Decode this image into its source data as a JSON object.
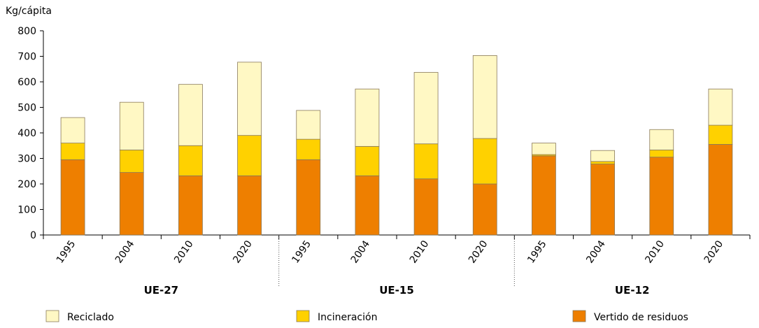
{
  "chart_data": {
    "type": "bar",
    "stacked": true,
    "ylabel": "Kg/cápita",
    "ylim": [
      0,
      800
    ],
    "yticks": [
      0,
      100,
      200,
      300,
      400,
      500,
      600,
      700,
      800
    ],
    "categories": [
      "1995",
      "2004",
      "2010",
      "2020",
      "1995",
      "2004",
      "2010",
      "2020",
      "1995",
      "2004",
      "2010",
      "2020"
    ],
    "groups": [
      {
        "label": "UE-27",
        "count": 4
      },
      {
        "label": "UE-15",
        "count": 4
      },
      {
        "label": "UE-12",
        "count": 4
      }
    ],
    "series": [
      {
        "name": "Vertido de residuos",
        "color": "#ee7f00",
        "values": [
          295,
          245,
          232,
          232,
          295,
          232,
          220,
          200,
          310,
          278,
          305,
          355
        ]
      },
      {
        "name": "Incineración",
        "color": "#ffd100",
        "values": [
          65,
          88,
          118,
          158,
          80,
          115,
          137,
          178,
          5,
          10,
          28,
          75
        ]
      },
      {
        "name": "Reciclado",
        "color": "#fff8c4",
        "values": [
          100,
          187,
          240,
          287,
          113,
          225,
          280,
          325,
          45,
          43,
          80,
          142
        ]
      }
    ],
    "legend": {
      "placement": "bottom",
      "items": [
        {
          "label": "Reciclado",
          "color": "#fff8c4"
        },
        {
          "label": "Incineración",
          "color": "#ffd100"
        },
        {
          "label": "Vertido de residuos",
          "color": "#ee7f00"
        }
      ]
    },
    "grid": false
  }
}
